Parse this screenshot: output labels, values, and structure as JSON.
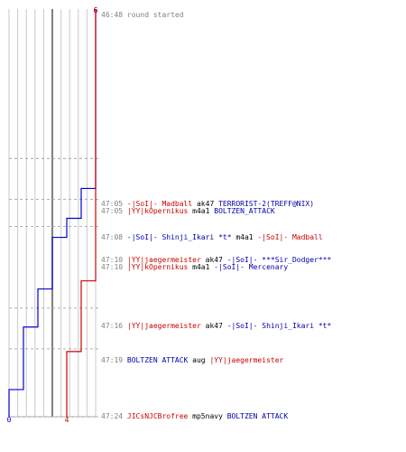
{
  "chart_data": {
    "type": "line",
    "series": [
      {
        "name": "",
        "color": "#0000cc",
        "points": [
          [
            0,
            6
          ],
          [
            13.2,
            6
          ],
          [
            13.2,
            5
          ],
          [
            15.4,
            5
          ],
          [
            15.4,
            4
          ],
          [
            16.8,
            4
          ],
          [
            16.8,
            3
          ],
          [
            20.6,
            3
          ],
          [
            20.6,
            2
          ],
          [
            23.4,
            2
          ],
          [
            23.4,
            1
          ],
          [
            28,
            1
          ],
          [
            28,
            0
          ],
          [
            30,
            0
          ]
        ],
        "start_label": "6",
        "end_label": "0"
      },
      {
        "name": "",
        "color": "#cc0000",
        "points": [
          [
            0,
            6
          ],
          [
            20,
            6
          ],
          [
            20,
            5
          ],
          [
            25.2,
            5
          ],
          [
            25.2,
            4
          ],
          [
            30,
            4
          ]
        ],
        "start_label": "6",
        "end_label": "4"
      }
    ],
    "grid_lines": 10,
    "center_line": 5
  },
  "log": [
    {
      "time": "46:48",
      "parts": [
        {
          "t": "round started",
          "c": "grey"
        }
      ]
    },
    {
      "time": "47:05",
      "parts": [
        {
          "t": "-|SoI|- Madball",
          "c": "red"
        },
        {
          "t": " ak47 ",
          "c": "black"
        },
        {
          "t": "TERRORIST-2(TREFF@NIX)",
          "c": "blue"
        }
      ]
    },
    {
      "time": "47:05",
      "parts": [
        {
          "t": "|YY|kOpernikus",
          "c": "red"
        },
        {
          "t": " m4a1 ",
          "c": "black"
        },
        {
          "t": "BOLTZEN_ATTACK",
          "c": "blue"
        }
      ]
    },
    {
      "time": "47:08",
      "parts": [
        {
          "t": "-|SoI|- Shinji_Ikari *t*",
          "c": "blue"
        },
        {
          "t": " m4a1 ",
          "c": "black"
        },
        {
          "t": "-|SoI|- Madball",
          "c": "red"
        }
      ]
    },
    {
      "time": "47:10",
      "parts": [
        {
          "t": "|YY|jaegermeister",
          "c": "red"
        },
        {
          "t": " ak47 ",
          "c": "black"
        },
        {
          "t": "-|SoI|- ***Sir_Dodger***",
          "c": "blue"
        }
      ]
    },
    {
      "time": "47:10",
      "parts": [
        {
          "t": "|YY|kOpernikus",
          "c": "red"
        },
        {
          "t": " m4a1 ",
          "c": "black"
        },
        {
          "t": "-|SoI|- Mercenary",
          "c": "blue"
        }
      ]
    },
    {
      "time": "47:16",
      "parts": [
        {
          "t": "|YY|jaegermeister",
          "c": "red"
        },
        {
          "t": " ak47 ",
          "c": "black"
        },
        {
          "t": "-|SoI|- Shinji_Ikari *t*",
          "c": "blue"
        }
      ]
    },
    {
      "time": "47:19",
      "parts": [
        {
          "t": "BOLTZEN ATTACK",
          "c": "blue"
        },
        {
          "t": " aug ",
          "c": "black"
        },
        {
          "t": "|YY|jaegermeister",
          "c": "red"
        }
      ]
    },
    {
      "time": "47:24",
      "parts": [
        {
          "t": "JICsNJCBrofree",
          "c": "red"
        },
        {
          "t": " mp5navy ",
          "c": "black"
        },
        {
          "t": "BOLTZEN ATTACK",
          "c": "blue"
        }
      ]
    }
  ]
}
